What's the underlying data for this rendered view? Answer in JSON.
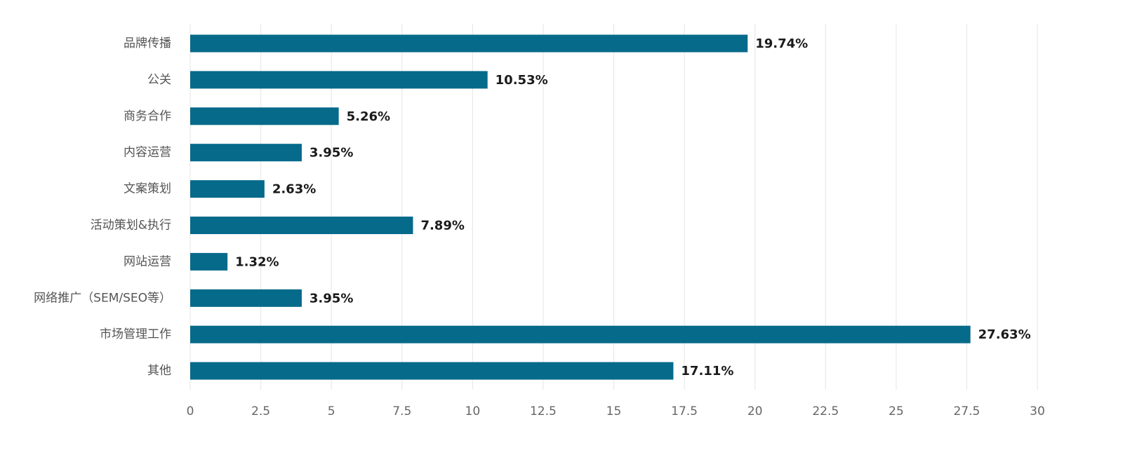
{
  "chart_data": {
    "type": "bar",
    "orientation": "horizontal",
    "categories": [
      "品牌传播",
      "公关",
      "商务合作",
      "内容运营",
      "文案策划",
      "活动策划&执行",
      "网站运营",
      "网络推广（SEM/SEO等）",
      "市场管理工作",
      "其他"
    ],
    "values": [
      19.74,
      10.53,
      5.26,
      3.95,
      2.63,
      7.89,
      1.32,
      3.95,
      27.63,
      17.11
    ],
    "data_labels": [
      "19.74%",
      "10.53%",
      "5.26%",
      "3.95%",
      "2.63%",
      "7.89%",
      "1.32%",
      "3.95%",
      "27.63%",
      "17.11%"
    ],
    "xlim": [
      0,
      30
    ],
    "x_ticks": [
      "0",
      "2.5",
      "5",
      "7.5",
      "10",
      "12.5",
      "15",
      "17.5",
      "20",
      "22.5",
      "25",
      "27.5",
      "30"
    ],
    "x_tick_values": [
      0,
      2.5,
      5,
      7.5,
      10,
      12.5,
      15,
      17.5,
      20,
      22.5,
      25,
      27.5,
      30
    ],
    "title": "",
    "xlabel": "",
    "ylabel": "",
    "grid": "vertical",
    "legend": "none",
    "bar_color": "#066A8A",
    "grid_color": "#E8E8E8"
  }
}
